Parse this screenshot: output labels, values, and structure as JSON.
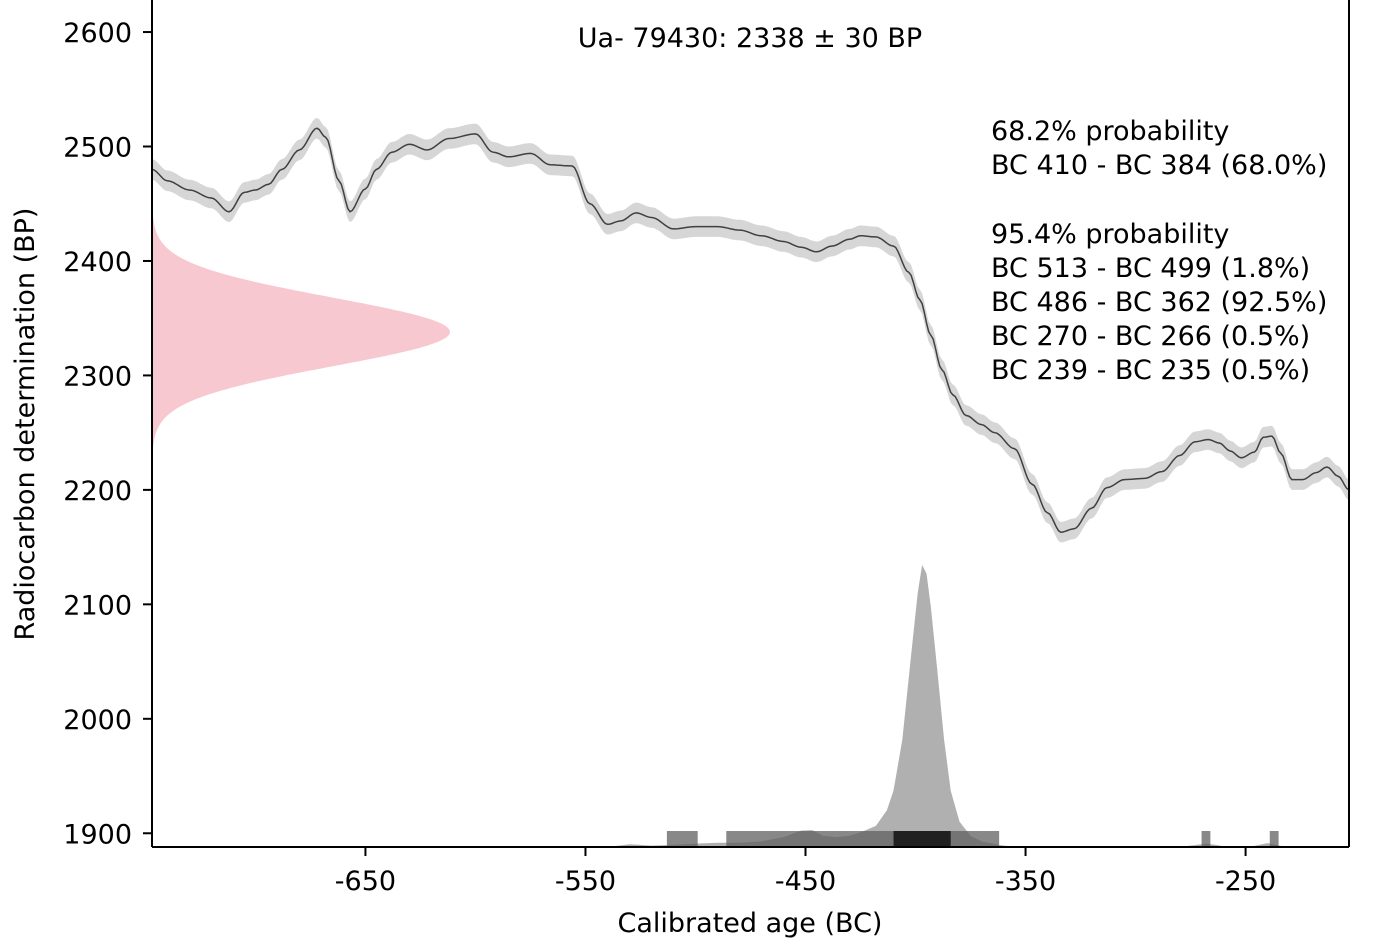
{
  "chart_data": {
    "type": "area",
    "title": "Ua- 79430: 2338 ± 30 BP",
    "xlabel": "Calibrated age (BC)",
    "ylabel": "Radiocarbon determination (BP)",
    "xlim": [
      -747,
      -203
    ],
    "ylim": [
      1888,
      2628
    ],
    "x_ticks": [
      -650,
      -550,
      -450,
      -350,
      -250
    ],
    "x_tick_labels": [
      "-650",
      "-550",
      "-450",
      "-350",
      "-250"
    ],
    "y_ticks": [
      1900,
      2000,
      2100,
      2200,
      2300,
      2400,
      2500,
      2600
    ],
    "y_tick_labels": [
      "1900",
      "2000",
      "2100",
      "2200",
      "2300",
      "2400",
      "2500",
      "2600"
    ],
    "grid": false,
    "measurement": {
      "mean_bp": 2338,
      "sigma_bp": 30
    },
    "calibration_curve": {
      "x": [
        -747,
        -740,
        -730,
        -720,
        -712,
        -705,
        -700,
        -694,
        -688,
        -680,
        -672,
        -668,
        -662,
        -657,
        -650,
        -645,
        -638,
        -630,
        -622,
        -612,
        -600,
        -592,
        -585,
        -575,
        -566,
        -556,
        -548,
        -540,
        -534,
        -527,
        -520,
        -510,
        -500,
        -490,
        -480,
        -470,
        -460,
        -452,
        -445,
        -438,
        -430,
        -425,
        -418,
        -410,
        -403,
        -398,
        -393,
        -388,
        -383,
        -377,
        -370,
        -364,
        -355,
        -347,
        -340,
        -334,
        -328,
        -320,
        -313,
        -305,
        -296,
        -288,
        -280,
        -273,
        -267,
        -262,
        -257,
        -252,
        -246,
        -242,
        -238,
        -234,
        -229,
        -224,
        -218,
        -213,
        -208,
        -203
      ],
      "y": [
        2480,
        2470,
        2462,
        2455,
        2443,
        2460,
        2462,
        2467,
        2480,
        2497,
        2516,
        2508,
        2470,
        2443,
        2463,
        2480,
        2495,
        2502,
        2497,
        2507,
        2511,
        2495,
        2491,
        2494,
        2484,
        2483,
        2450,
        2432,
        2435,
        2442,
        2438,
        2428,
        2430,
        2430,
        2427,
        2422,
        2417,
        2412,
        2408,
        2413,
        2419,
        2422,
        2421,
        2413,
        2390,
        2366,
        2335,
        2305,
        2283,
        2265,
        2257,
        2250,
        2236,
        2205,
        2180,
        2163,
        2166,
        2184,
        2202,
        2209,
        2210,
        2216,
        2230,
        2242,
        2244,
        2241,
        2234,
        2228,
        2233,
        2246,
        2247,
        2232,
        2209,
        2209,
        2215,
        2220,
        2212,
        2200
      ],
      "sigma": 9
    },
    "posterior": {
      "x": [
        -540,
        -530,
        -520,
        -510,
        -500,
        -490,
        -480,
        -470,
        -460,
        -452,
        -447,
        -442,
        -436,
        -430,
        -424,
        -418,
        -413,
        -410,
        -406,
        -402,
        -399,
        -397,
        -395,
        -393,
        -390,
        -387,
        -384,
        -380,
        -375,
        -370,
        -365,
        -360,
        -355,
        -350,
        -280,
        -276,
        -272,
        -268,
        -264,
        -260,
        -250,
        -246,
        -243,
        -240,
        -237,
        -234,
        -230,
        -225
      ],
      "density": [
        0,
        0.01,
        0.005,
        0.008,
        0.012,
        0.015,
        0.015,
        0.02,
        0.035,
        0.058,
        0.06,
        0.04,
        0.035,
        0.04,
        0.055,
        0.075,
        0.13,
        0.2,
        0.38,
        0.68,
        0.9,
        1.0,
        0.97,
        0.85,
        0.62,
        0.38,
        0.2,
        0.09,
        0.04,
        0.02,
        0.012,
        0.005,
        0.002,
        0,
        0,
        0.004,
        0.008,
        0.012,
        0.008,
        0.003,
        0,
        0.004,
        0.009,
        0.014,
        0.009,
        0.004,
        0.002,
        0
      ]
    },
    "hpd_68": [
      {
        "from": -410,
        "to": -384,
        "label": "BC 410 - BC 384 (68.0%)"
      }
    ],
    "hpd_95": [
      {
        "from": -513,
        "to": -499,
        "label": "BC 513 - BC 499 (1.8%)"
      },
      {
        "from": -486,
        "to": -362,
        "label": "BC 486 - BC 362 (92.5%)"
      },
      {
        "from": -270,
        "to": -266,
        "label": "BC 270 - BC 266 (0.5%)"
      },
      {
        "from": -239,
        "to": -235,
        "label": "BC 239 - BC 235 (0.5%)"
      }
    ],
    "annotations": {
      "p68_heading": "68.2% probability",
      "p95_heading": "95.4% probability"
    },
    "colors": {
      "curve_line": "#404040",
      "curve_band": "#d6d6d6",
      "measurement_fill": "#f8c8d0",
      "posterior_fill": "#b0b0b0",
      "hpd95_bar": "#606060",
      "hpd68_bar": "#202020",
      "axis": "#000000"
    }
  }
}
